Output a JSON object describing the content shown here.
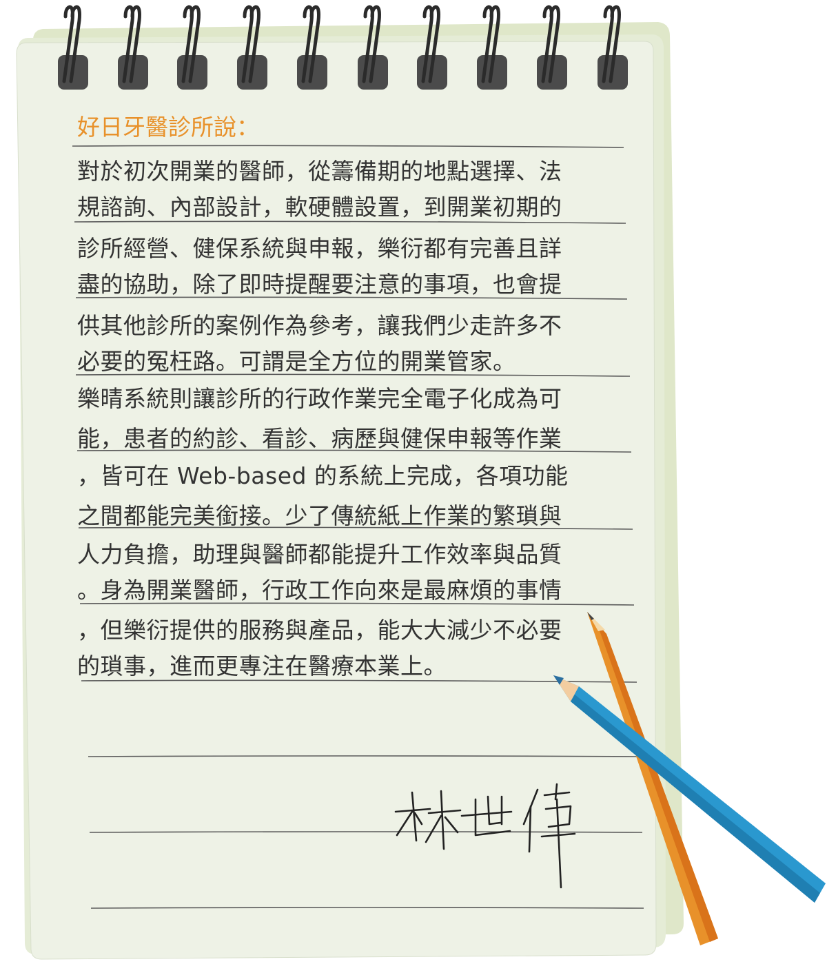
{
  "note": {
    "heading": "好日牙醫診所說：",
    "lines": [
      "對於初次開業的醫師，從籌備期的地點選擇、法",
      "規諮詢、內部設計，軟硬體設置，到開業初期的",
      "診所經營、健保系統與申報，樂衍都有完善且詳",
      "盡的協助，除了即時提醒要注意的事項，也會提",
      "供其他診所的案例作為參考，讓我們少走許多不",
      "必要的冤枉路。可謂是全方位的開業管家。",
      "樂晴系統則讓診所的行政作業完全電子化成為可",
      "能，患者的約診、看診、病歷與健保申報等作業",
      "，皆可在 Web-based 的系統上完成，各項功能",
      "之間都能完美銜接。少了傳統紙上作業的繁瑣與",
      "人力負擔，助理與醫師都能提升工作效率與品質",
      "。身為開業醫師，行政工作向來是最麻煩的事情",
      "，但樂衍提供的服務與產品，能大大減少不必要",
      "的瑣事，進而更專注在醫療本業上。"
    ],
    "signature": "林世偉"
  },
  "colors": {
    "heading": "#e8912a",
    "text": "#333333",
    "paper": "#eef2e4",
    "paper_back": "#e2ebd0",
    "ring": "#4a4a4a",
    "orange_pencil": "#e8912a",
    "blue_pencil": "#2a98cf"
  },
  "icons": {
    "spiral": "spiral-binding-icon",
    "orange_pencil": "orange-pencil-icon",
    "blue_pencil": "blue-pencil-icon",
    "signature": "handwritten-signature"
  }
}
